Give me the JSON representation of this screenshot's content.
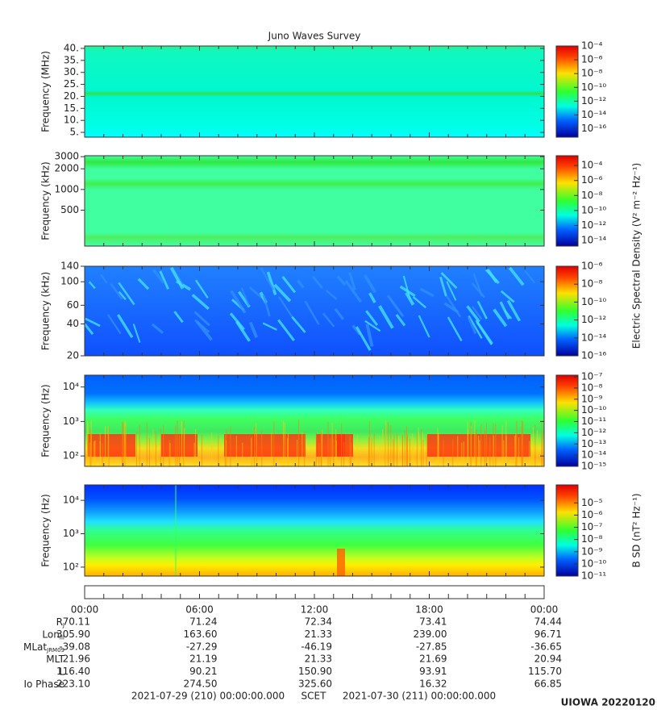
{
  "chart_data": [
    {
      "type": "spectrogram",
      "title": "Juno Waves Survey",
      "ylabel": "Frequency (MHz)",
      "yscale": "linear",
      "ylim": [
        3,
        41
      ],
      "yticks": [
        {
          "value": 40,
          "label": "40."
        },
        {
          "value": 35,
          "label": "35."
        },
        {
          "value": 30,
          "label": "30."
        },
        {
          "value": 25,
          "label": "25."
        },
        {
          "value": 20,
          "label": "20."
        },
        {
          "value": 15,
          "label": "15."
        },
        {
          "value": 10,
          "label": "10."
        },
        {
          "value": 5,
          "label": "5."
        }
      ],
      "cscale": "log",
      "clim": [
        6e-18,
        0.0001
      ],
      "cticks": [
        {
          "value": 0.0001,
          "label": "10⁻⁴"
        },
        {
          "value": 1e-06,
          "label": "10⁻⁶"
        },
        {
          "value": 1e-08,
          "label": "10⁻⁸"
        },
        {
          "value": 1e-10,
          "label": "10⁻¹⁰"
        },
        {
          "value": 1e-12,
          "label": "10⁻¹²"
        },
        {
          "value": 1e-14,
          "label": "10⁻¹⁴"
        },
        {
          "value": 1e-16,
          "label": "10⁻¹⁶"
        }
      ]
    },
    {
      "type": "spectrogram",
      "ylabel": "Frequency (kHz)",
      "yscale": "log",
      "ylim": [
        150,
        3100
      ],
      "yticks": [
        3000,
        2000,
        1000,
        500
      ],
      "cscale": "log",
      "clim": [
        1.8e-15,
        0.002
      ],
      "cticks": [
        {
          "value": 0.0001,
          "label": "10⁻⁴"
        },
        {
          "value": 1e-06,
          "label": "10⁻⁶"
        },
        {
          "value": 1e-08,
          "label": "10⁻⁸"
        },
        {
          "value": 1e-10,
          "label": "10⁻¹⁰"
        },
        {
          "value": 1e-12,
          "label": "10⁻¹²"
        },
        {
          "value": 1e-14,
          "label": "10⁻¹⁴"
        }
      ]
    },
    {
      "type": "spectrogram",
      "ylabel": "Frequency (kHz)",
      "yscale": "log",
      "ylim": [
        20,
        140
      ],
      "yticks": [
        140,
        100,
        60,
        40,
        20
      ],
      "cscale": "log",
      "clim": [
        1e-16,
        1e-06
      ],
      "cticks": [
        {
          "value": 1e-06,
          "label": "10⁻⁶"
        },
        {
          "value": 1e-08,
          "label": "10⁻⁸"
        },
        {
          "value": 1e-10,
          "label": "10⁻¹⁰"
        },
        {
          "value": 1e-12,
          "label": "10⁻¹²"
        },
        {
          "value": 1e-14,
          "label": "10⁻¹⁴"
        },
        {
          "value": 1e-16,
          "label": "10⁻¹⁶"
        }
      ],
      "colorbar_label": "Electric Spectral Density (V² m⁻² Hz⁻¹)"
    },
    {
      "type": "spectrogram",
      "ylabel": "Frequency (Hz)",
      "yscale": "log",
      "ylim": [
        50,
        22000
      ],
      "yticks": [
        {
          "value": 10000,
          "label": "10⁴"
        },
        {
          "value": 1000,
          "label": "10³"
        },
        {
          "value": 100,
          "label": "10²"
        }
      ],
      "cscale": "log",
      "clim": [
        1e-15,
        1.4e-07
      ],
      "cticks": [
        {
          "value": 1e-07,
          "label": "10⁻⁷"
        },
        {
          "value": 1e-08,
          "label": "10⁻⁸"
        },
        {
          "value": 1e-09,
          "label": "10⁻⁹"
        },
        {
          "value": 1e-10,
          "label": "10⁻¹⁰"
        },
        {
          "value": 1e-11,
          "label": "10⁻¹¹"
        },
        {
          "value": 1e-12,
          "label": "10⁻¹²"
        },
        {
          "value": 1e-13,
          "label": "10⁻¹³"
        },
        {
          "value": 1e-14,
          "label": "10⁻¹⁴"
        },
        {
          "value": 1e-15,
          "label": "10⁻¹⁵"
        }
      ]
    },
    {
      "type": "spectrogram",
      "ylabel": "Frequency (Hz)",
      "yscale": "log",
      "ylim": [
        54,
        29000
      ],
      "yticks": [
        {
          "value": 10000,
          "label": "10⁴"
        },
        {
          "value": 1000,
          "label": "10³"
        },
        {
          "value": 100,
          "label": "10²"
        }
      ],
      "cscale": "log",
      "clim": [
        1e-11,
        0.0003
      ],
      "cticks": [
        {
          "value": 1e-05,
          "label": "10⁻⁵"
        },
        {
          "value": 1e-06,
          "label": "10⁻⁶"
        },
        {
          "value": 1e-07,
          "label": "10⁻⁷"
        },
        {
          "value": 1e-08,
          "label": "10⁻⁸"
        },
        {
          "value": 1e-09,
          "label": "10⁻⁹"
        },
        {
          "value": 1e-10,
          "label": "10⁻¹⁰"
        },
        {
          "value": 1e-11,
          "label": "10⁻¹¹"
        }
      ],
      "colorbar_label": "B SD (nT² Hz⁻¹)"
    }
  ],
  "ephemeris": {
    "time_labels": [
      "00:00",
      "06:00",
      "12:00",
      "18:00",
      "00:00"
    ],
    "rows": [
      {
        "label": "R",
        "sub": "J",
        "values": [
          "70.11",
          "71.24",
          "72.34",
          "73.41",
          "74.44"
        ]
      },
      {
        "label": "Lon",
        "sub": "III",
        "values": [
          "305.90",
          "163.60",
          "21.33",
          "239.00",
          "96.71"
        ]
      },
      {
        "label": "MLat",
        "sub": "JRM09",
        "values": [
          "-39.08",
          "-27.29",
          "-46.19",
          "-27.85",
          "-36.65"
        ]
      },
      {
        "label": "MLT",
        "values": [
          "21.96",
          "21.19",
          "21.33",
          "21.69",
          "20.94"
        ]
      },
      {
        "label": "L",
        "values": [
          "116.40",
          "90.21",
          "150.90",
          "93.91",
          "115.70"
        ]
      },
      {
        "label": "Io Phase",
        "values": [
          "223.10",
          "274.50",
          "325.60",
          "16.32",
          "66.85"
        ]
      }
    ]
  },
  "footer": {
    "start": "2021-07-29 (210) 00:00:00.000",
    "scet": "SCET",
    "end": "2021-07-30 (211) 00:00:00.000"
  },
  "credit": "UIOWA 20220120"
}
